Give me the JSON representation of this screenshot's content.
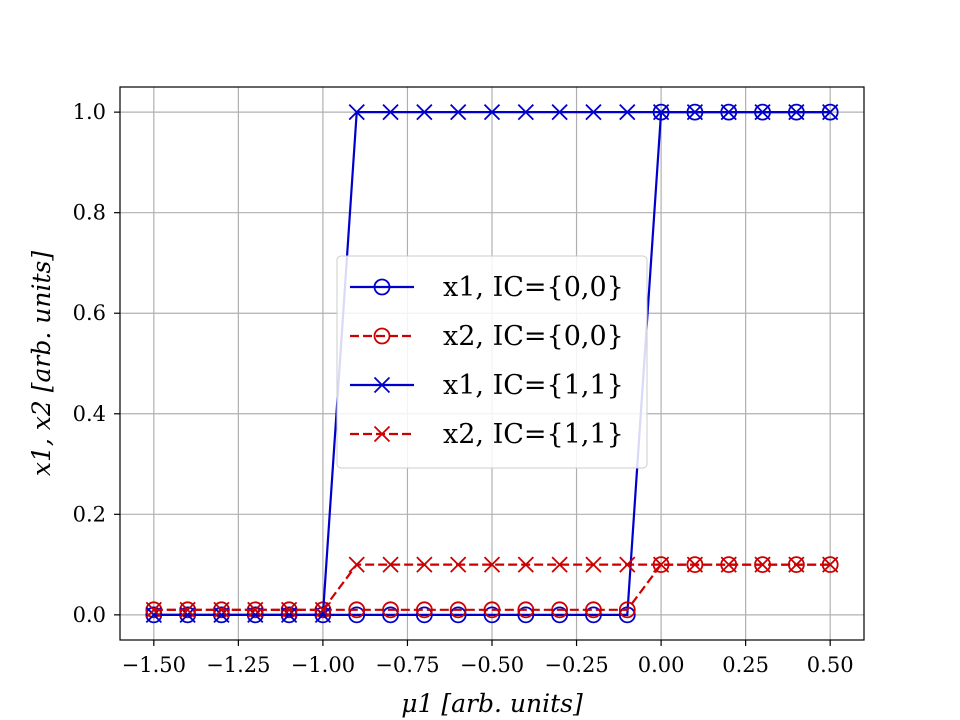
{
  "chart_data": {
    "type": "line",
    "xlabel": "μ1 [arb. units]",
    "ylabel": "x1, x2 [arb. units]",
    "xlim": [
      -1.6,
      0.6
    ],
    "ylim": [
      -0.05,
      1.05
    ],
    "grid": true,
    "legend_placement": "center",
    "x_ticks": [
      -1.5,
      -1.25,
      -1.0,
      -0.75,
      -0.5,
      -0.25,
      0.0,
      0.25,
      0.5
    ],
    "x_tick_labels": [
      "−1.50",
      "−1.25",
      "−1.00",
      "−0.75",
      "−0.50",
      "−0.25",
      "0.00",
      "0.25",
      "0.50"
    ],
    "y_ticks": [
      0.0,
      0.2,
      0.4,
      0.6,
      0.8,
      1.0
    ],
    "y_tick_labels": [
      "0.0",
      "0.2",
      "0.4",
      "0.6",
      "0.8",
      "1.0"
    ],
    "x": [
      -1.5,
      -1.4,
      -1.3,
      -1.2,
      -1.1,
      -1.0,
      -0.9,
      -0.8,
      -0.7,
      -0.6,
      -0.5,
      -0.4,
      -0.3,
      -0.2,
      -0.1,
      0.0,
      0.1,
      0.2,
      0.3,
      0.4,
      0.5
    ],
    "series": [
      {
        "name": "x1, IC={0,0}",
        "color": "#0000cc",
        "linestyle": "solid",
        "marker": "circle",
        "values": [
          0,
          0,
          0,
          0,
          0,
          0,
          0,
          0,
          0,
          0,
          0,
          0,
          0,
          0,
          0,
          1,
          1,
          1,
          1,
          1,
          1
        ]
      },
      {
        "name": "x2, IC={0,0}",
        "color": "#cc0000",
        "linestyle": "dashed",
        "marker": "circle",
        "values": [
          0.01,
          0.01,
          0.01,
          0.01,
          0.01,
          0.01,
          0.01,
          0.01,
          0.01,
          0.01,
          0.01,
          0.01,
          0.01,
          0.01,
          0.01,
          0.1,
          0.1,
          0.1,
          0.1,
          0.1,
          0.1
        ]
      },
      {
        "name": "x1, IC={1,1}",
        "color": "#0000cc",
        "linestyle": "solid",
        "marker": "x",
        "values": [
          0,
          0,
          0,
          0,
          0,
          0,
          1,
          1,
          1,
          1,
          1,
          1,
          1,
          1,
          1,
          1,
          1,
          1,
          1,
          1,
          1
        ]
      },
      {
        "name": "x2, IC={1,1}",
        "color": "#cc0000",
        "linestyle": "dashed",
        "marker": "x",
        "values": [
          0.01,
          0.01,
          0.01,
          0.01,
          0.01,
          0.01,
          0.1,
          0.1,
          0.1,
          0.1,
          0.1,
          0.1,
          0.1,
          0.1,
          0.1,
          0.1,
          0.1,
          0.1,
          0.1,
          0.1,
          0.1
        ]
      }
    ]
  }
}
